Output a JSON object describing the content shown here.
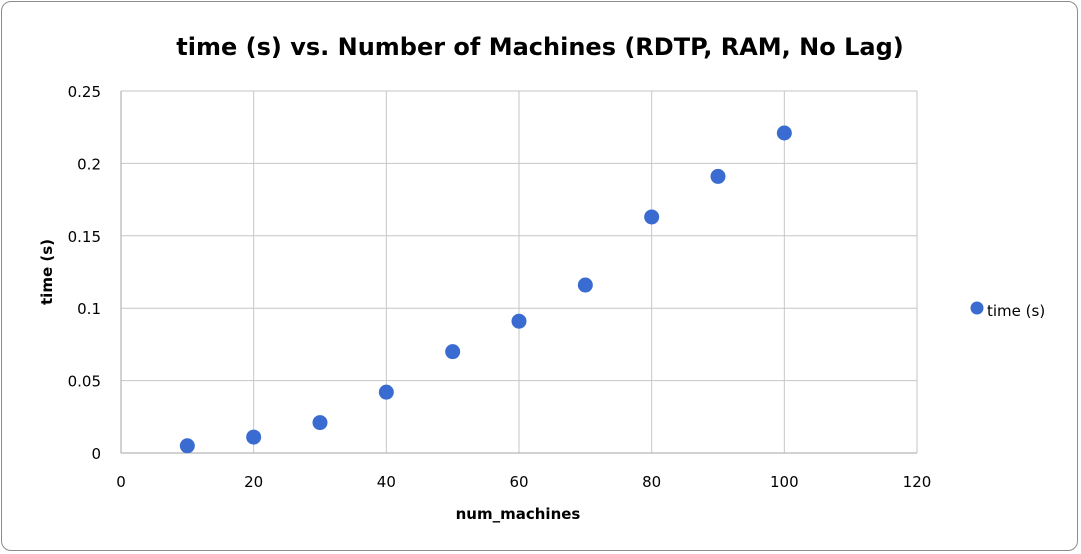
{
  "chart_data": {
    "type": "scatter",
    "title": "time (s) vs. Number of Machines (RDTP, RAM, No Lag)",
    "xlabel": "num_machines",
    "ylabel": "time (s)",
    "xlim": [
      0,
      120
    ],
    "ylim": [
      0,
      0.25
    ],
    "xticks": [
      0,
      20,
      40,
      60,
      80,
      100,
      120
    ],
    "xtick_labels": [
      "0",
      "20",
      "40",
      "60",
      "80",
      "100",
      "120"
    ],
    "yticks": [
      0,
      0.05,
      0.1,
      0.15,
      0.2,
      0.25
    ],
    "ytick_labels": [
      "0",
      "0.05",
      "0.1",
      "0.15",
      "0.2",
      "0.25"
    ],
    "grid": true,
    "legend_position": "right",
    "series": [
      {
        "name": "time (s)",
        "color": "#3a6bd0",
        "x": [
          10,
          20,
          30,
          40,
          50,
          60,
          70,
          80,
          90,
          100
        ],
        "y": [
          0.005,
          0.011,
          0.021,
          0.042,
          0.07,
          0.091,
          0.116,
          0.163,
          0.191,
          0.221
        ]
      }
    ]
  }
}
